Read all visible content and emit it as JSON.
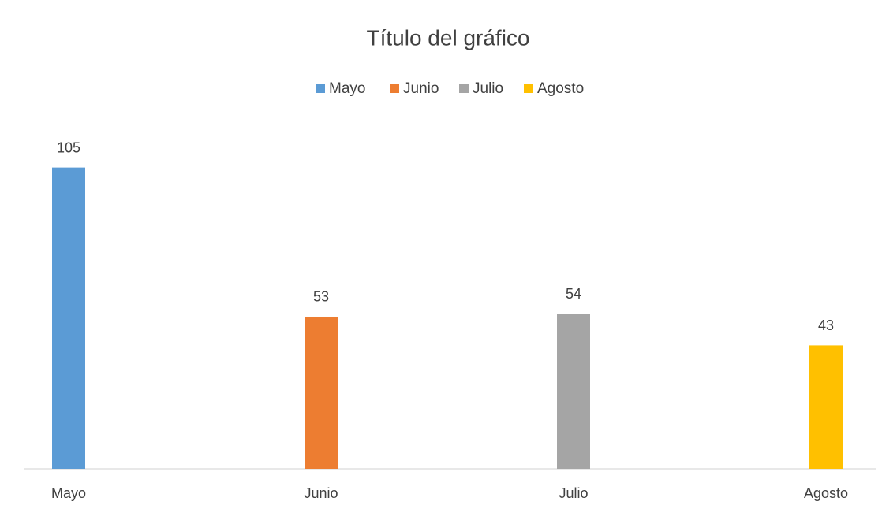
{
  "chart_data": {
    "type": "bar",
    "title": "Título del gráfico",
    "categories": [
      "Mayo",
      "Junio",
      "Julio",
      "Agosto"
    ],
    "values": [
      105,
      53,
      54,
      43
    ],
    "colors": [
      "#5b9bd5",
      "#ed7d31",
      "#a5a5a5",
      "#ffc000"
    ],
    "ylim": [
      0,
      120
    ],
    "legend": "top",
    "data_labels": true
  }
}
